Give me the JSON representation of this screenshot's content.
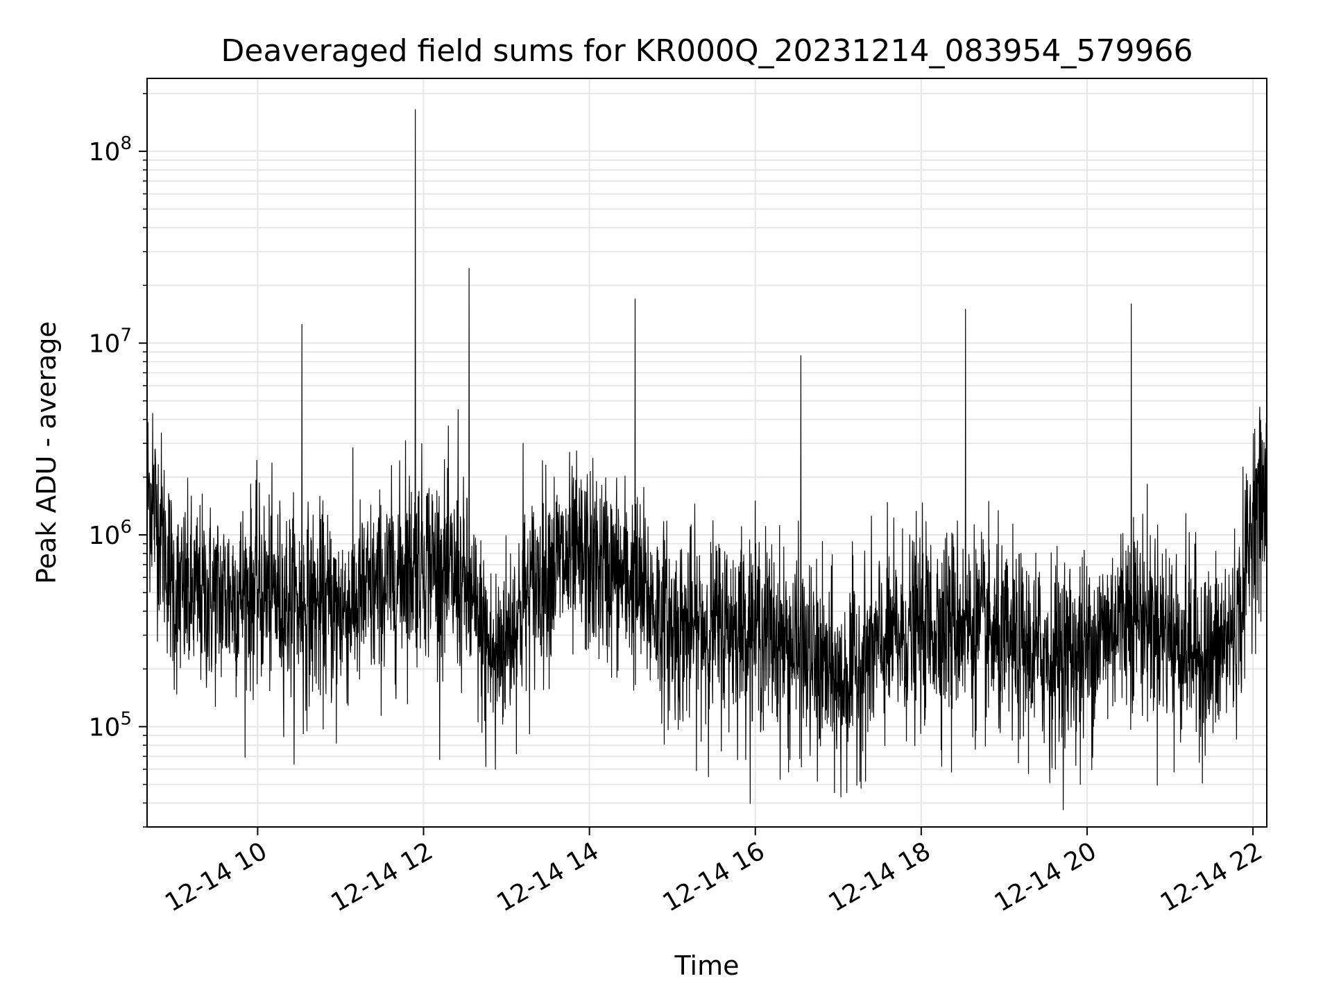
{
  "chart_data": {
    "type": "line",
    "title": "Deaveraged field sums for KR000Q_20231214_083954_579966",
    "xlabel": "Time",
    "ylabel": "Peak ADU - average",
    "yscale": "log",
    "ylim": [
      30000,
      240000000
    ],
    "xlim": [
      "2023-12-14 08:40",
      "2023-12-14 22:10"
    ],
    "grid": true,
    "x_ticks": [
      {
        "t": "2023-12-14 10:00",
        "label": "12-14 10"
      },
      {
        "t": "2023-12-14 12:00",
        "label": "12-14 12"
      },
      {
        "t": "2023-12-14 14:00",
        "label": "12-14 14"
      },
      {
        "t": "2023-12-14 16:00",
        "label": "12-14 16"
      },
      {
        "t": "2023-12-14 18:00",
        "label": "12-14 18"
      },
      {
        "t": "2023-12-14 20:00",
        "label": "12-14 20"
      },
      {
        "t": "2023-12-14 22:00",
        "label": "12-14 22"
      }
    ],
    "y_ticks": [
      {
        "value": 100000,
        "base": "10",
        "exp": "5"
      },
      {
        "value": 1000000,
        "base": "10",
        "exp": "6"
      },
      {
        "value": 10000000,
        "base": "10",
        "exp": "7"
      },
      {
        "value": 100000000,
        "base": "10",
        "exp": "8"
      }
    ],
    "series": [
      {
        "color": "#000000",
        "baseline": [
          [
            "2023-12-14 08:40",
            1800000
          ],
          [
            "2023-12-14 08:50",
            1100000
          ],
          [
            "2023-12-14 09:00",
            480000
          ],
          [
            "2023-12-14 09:30",
            470000
          ],
          [
            "2023-12-14 10:00",
            520000
          ],
          [
            "2023-12-14 10:30",
            430000
          ],
          [
            "2023-12-14 11:00",
            410000
          ],
          [
            "2023-12-14 11:30",
            520000
          ],
          [
            "2023-12-14 12:00",
            780000
          ],
          [
            "2023-12-14 12:30",
            520000
          ],
          [
            "2023-12-14 12:50",
            220000
          ],
          [
            "2023-12-14 13:10",
            400000
          ],
          [
            "2023-12-14 13:30",
            700000
          ],
          [
            "2023-12-14 14:00",
            720000
          ],
          [
            "2023-12-14 14:30",
            580000
          ],
          [
            "2023-12-14 15:00",
            320000
          ],
          [
            "2023-12-14 15:30",
            330000
          ],
          [
            "2023-12-14 16:00",
            340000
          ],
          [
            "2023-12-14 16:30",
            250000
          ],
          [
            "2023-12-14 17:00",
            170000
          ],
          [
            "2023-12-14 17:30",
            260000
          ],
          [
            "2023-12-14 18:00",
            330000
          ],
          [
            "2023-12-14 18:30",
            360000
          ],
          [
            "2023-12-14 19:00",
            260000
          ],
          [
            "2023-12-14 19:30",
            240000
          ],
          [
            "2023-12-14 20:00",
            250000
          ],
          [
            "2023-12-14 20:30",
            420000
          ],
          [
            "2023-12-14 21:00",
            310000
          ],
          [
            "2023-12-14 21:30",
            220000
          ],
          [
            "2023-12-14 21:50",
            350000
          ],
          [
            "2023-12-14 22:00",
            1300000
          ],
          [
            "2023-12-14 22:10",
            1500000
          ]
        ],
        "spikes": [
          [
            "2023-12-14 10:32",
            12500000
          ],
          [
            "2023-12-14 11:54",
            165000000
          ],
          [
            "2023-12-14 12:33",
            24500000
          ],
          [
            "2023-12-14 12:25",
            4500000
          ],
          [
            "2023-12-14 14:33",
            17000000
          ],
          [
            "2023-12-14 16:33",
            8600000
          ],
          [
            "2023-12-14 18:32",
            15000000
          ],
          [
            "2023-12-14 20:32",
            16000000
          ],
          [
            "2023-12-14 22:10",
            5100000
          ],
          [
            "2023-12-14 08:44",
            4300000
          ],
          [
            "2023-12-14 13:12",
            3000000
          ],
          [
            "2023-12-14 11:47",
            3100000
          ]
        ],
        "dips": [
          [
            "2023-12-14 12:45",
            62000
          ],
          [
            "2023-12-14 12:52",
            60000
          ],
          [
            "2023-12-14 16:24",
            58000
          ],
          [
            "2023-12-14 17:02",
            43000
          ],
          [
            "2023-12-14 16:45",
            52000
          ],
          [
            "2023-12-14 19:33",
            51000
          ],
          [
            "2023-12-14 19:55",
            50000
          ],
          [
            "2023-12-14 18:22",
            58000
          ],
          [
            "2023-12-14 21:03",
            58000
          ],
          [
            "2023-12-14 10:33",
            92000
          ],
          [
            "2023-12-14 10:57",
            82000
          ]
        ],
        "noise_spread_decades": 0.55
      }
    ]
  }
}
